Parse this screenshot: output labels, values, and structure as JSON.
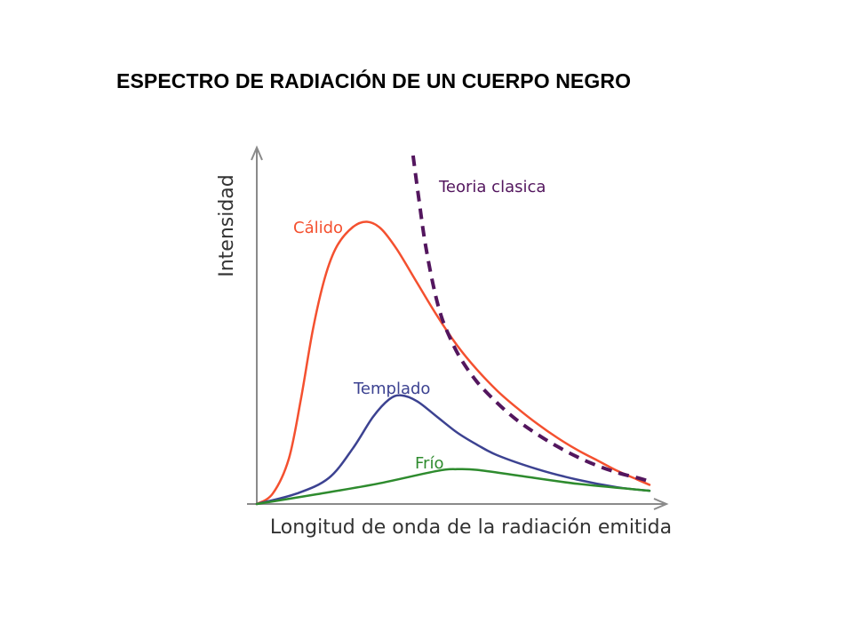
{
  "title": "ESPECTRO DE RADIACIÓN DE UN CUERPO NEGRO",
  "chart_data": {
    "type": "line",
    "title": "ESPECTRO DE RADIACIÓN DE UN CUERPO NEGRO",
    "xlabel": "Longitud de onda de la radiación emitida",
    "ylabel": "Intensidad",
    "xlim": [
      0,
      10
    ],
    "ylim": [
      0,
      10
    ],
    "grid": false,
    "legend": "none",
    "series": [
      {
        "name": "Cálido",
        "color": "#f4502f",
        "style": "solid",
        "x": [
          0,
          0.4,
          0.8,
          1.1,
          1.4,
          1.7,
          2.0,
          2.4,
          2.75,
          3.1,
          3.5,
          4.0,
          4.5,
          5.0,
          5.5,
          6.0,
          6.5,
          7.0,
          7.5,
          8.0,
          8.5,
          9.0,
          9.5,
          9.8
        ],
        "y": [
          0,
          0.3,
          1.3,
          3.0,
          5.0,
          6.5,
          7.4,
          7.95,
          8.1,
          7.9,
          7.3,
          6.35,
          5.4,
          4.55,
          3.85,
          3.25,
          2.75,
          2.3,
          1.9,
          1.55,
          1.25,
          0.95,
          0.7,
          0.55
        ]
      },
      {
        "name": "Templado",
        "color": "#3c4291",
        "style": "solid",
        "x": [
          0,
          1.0,
          1.8,
          2.4,
          2.9,
          3.3,
          3.6,
          4.0,
          4.5,
          5.0,
          5.5,
          6.0,
          7.0,
          8.0,
          9.0,
          9.8
        ],
        "y": [
          0,
          0.3,
          0.75,
          1.6,
          2.5,
          3.0,
          3.12,
          2.95,
          2.5,
          2.05,
          1.7,
          1.4,
          1.0,
          0.7,
          0.48,
          0.38
        ]
      },
      {
        "name": "Frío",
        "color": "#2e8b2e",
        "style": "solid",
        "x": [
          0,
          1.5,
          3.0,
          4.5,
          5.0,
          5.5,
          6.5,
          8.0,
          9.8
        ],
        "y": [
          0,
          0.28,
          0.58,
          0.95,
          1.0,
          0.98,
          0.82,
          0.58,
          0.38
        ]
      },
      {
        "name": "Teoria clasica",
        "color": "#53165e",
        "style": "dashed",
        "x": [
          3.9,
          4.05,
          4.2,
          4.4,
          4.6,
          4.85,
          5.1,
          5.5,
          6.0,
          6.5,
          7.0,
          7.5,
          8.0,
          8.5,
          9.0,
          9.5,
          9.8
        ],
        "y": [
          10.0,
          8.7,
          7.5,
          6.3,
          5.4,
          4.7,
          4.15,
          3.5,
          2.9,
          2.4,
          2.0,
          1.65,
          1.35,
          1.1,
          0.9,
          0.75,
          0.65
        ]
      }
    ]
  }
}
